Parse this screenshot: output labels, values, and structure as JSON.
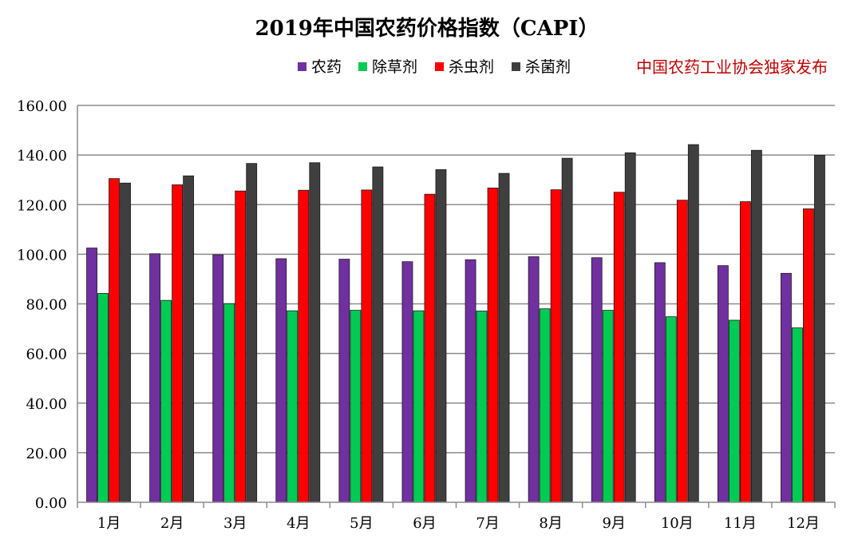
{
  "chart_data": {
    "type": "bar",
    "title": "2019年中国农药价格指数（CAPI）",
    "publisher_note": "中国农药工业协会独家发布",
    "categories": [
      "1月",
      "2月",
      "3月",
      "4月",
      "5月",
      "6月",
      "7月",
      "8月",
      "9月",
      "10月",
      "11月",
      "12月"
    ],
    "series": [
      {
        "name": "农药",
        "color": "#7030a0",
        "values": [
          102.5,
          100.2,
          99.8,
          98.2,
          98.0,
          97.0,
          97.8,
          99.0,
          98.6,
          96.6,
          95.4,
          92.3
        ]
      },
      {
        "name": "除草剂",
        "color": "#00cc55",
        "values": [
          84.2,
          81.4,
          80.1,
          77.2,
          77.4,
          77.2,
          77.1,
          78.0,
          77.4,
          74.8,
          73.4,
          70.3
        ]
      },
      {
        "name": "杀虫剂",
        "color": "#ff0000",
        "values": [
          130.5,
          128.0,
          125.5,
          125.8,
          125.9,
          124.2,
          126.7,
          126.0,
          125.0,
          121.8,
          121.2,
          118.3
        ]
      },
      {
        "name": "杀菌剂",
        "color": "#3f3f3f",
        "values": [
          128.7,
          131.6,
          136.6,
          136.9,
          135.2,
          134.1,
          132.6,
          138.7,
          140.9,
          144.2,
          141.9,
          139.9
        ]
      }
    ],
    "ylim": [
      0,
      160
    ],
    "y_ticks": [
      "0.00",
      "20.00",
      "40.00",
      "60.00",
      "80.00",
      "100.00",
      "120.00",
      "140.00",
      "160.00"
    ],
    "grid": true,
    "legend_position": "top-center"
  }
}
